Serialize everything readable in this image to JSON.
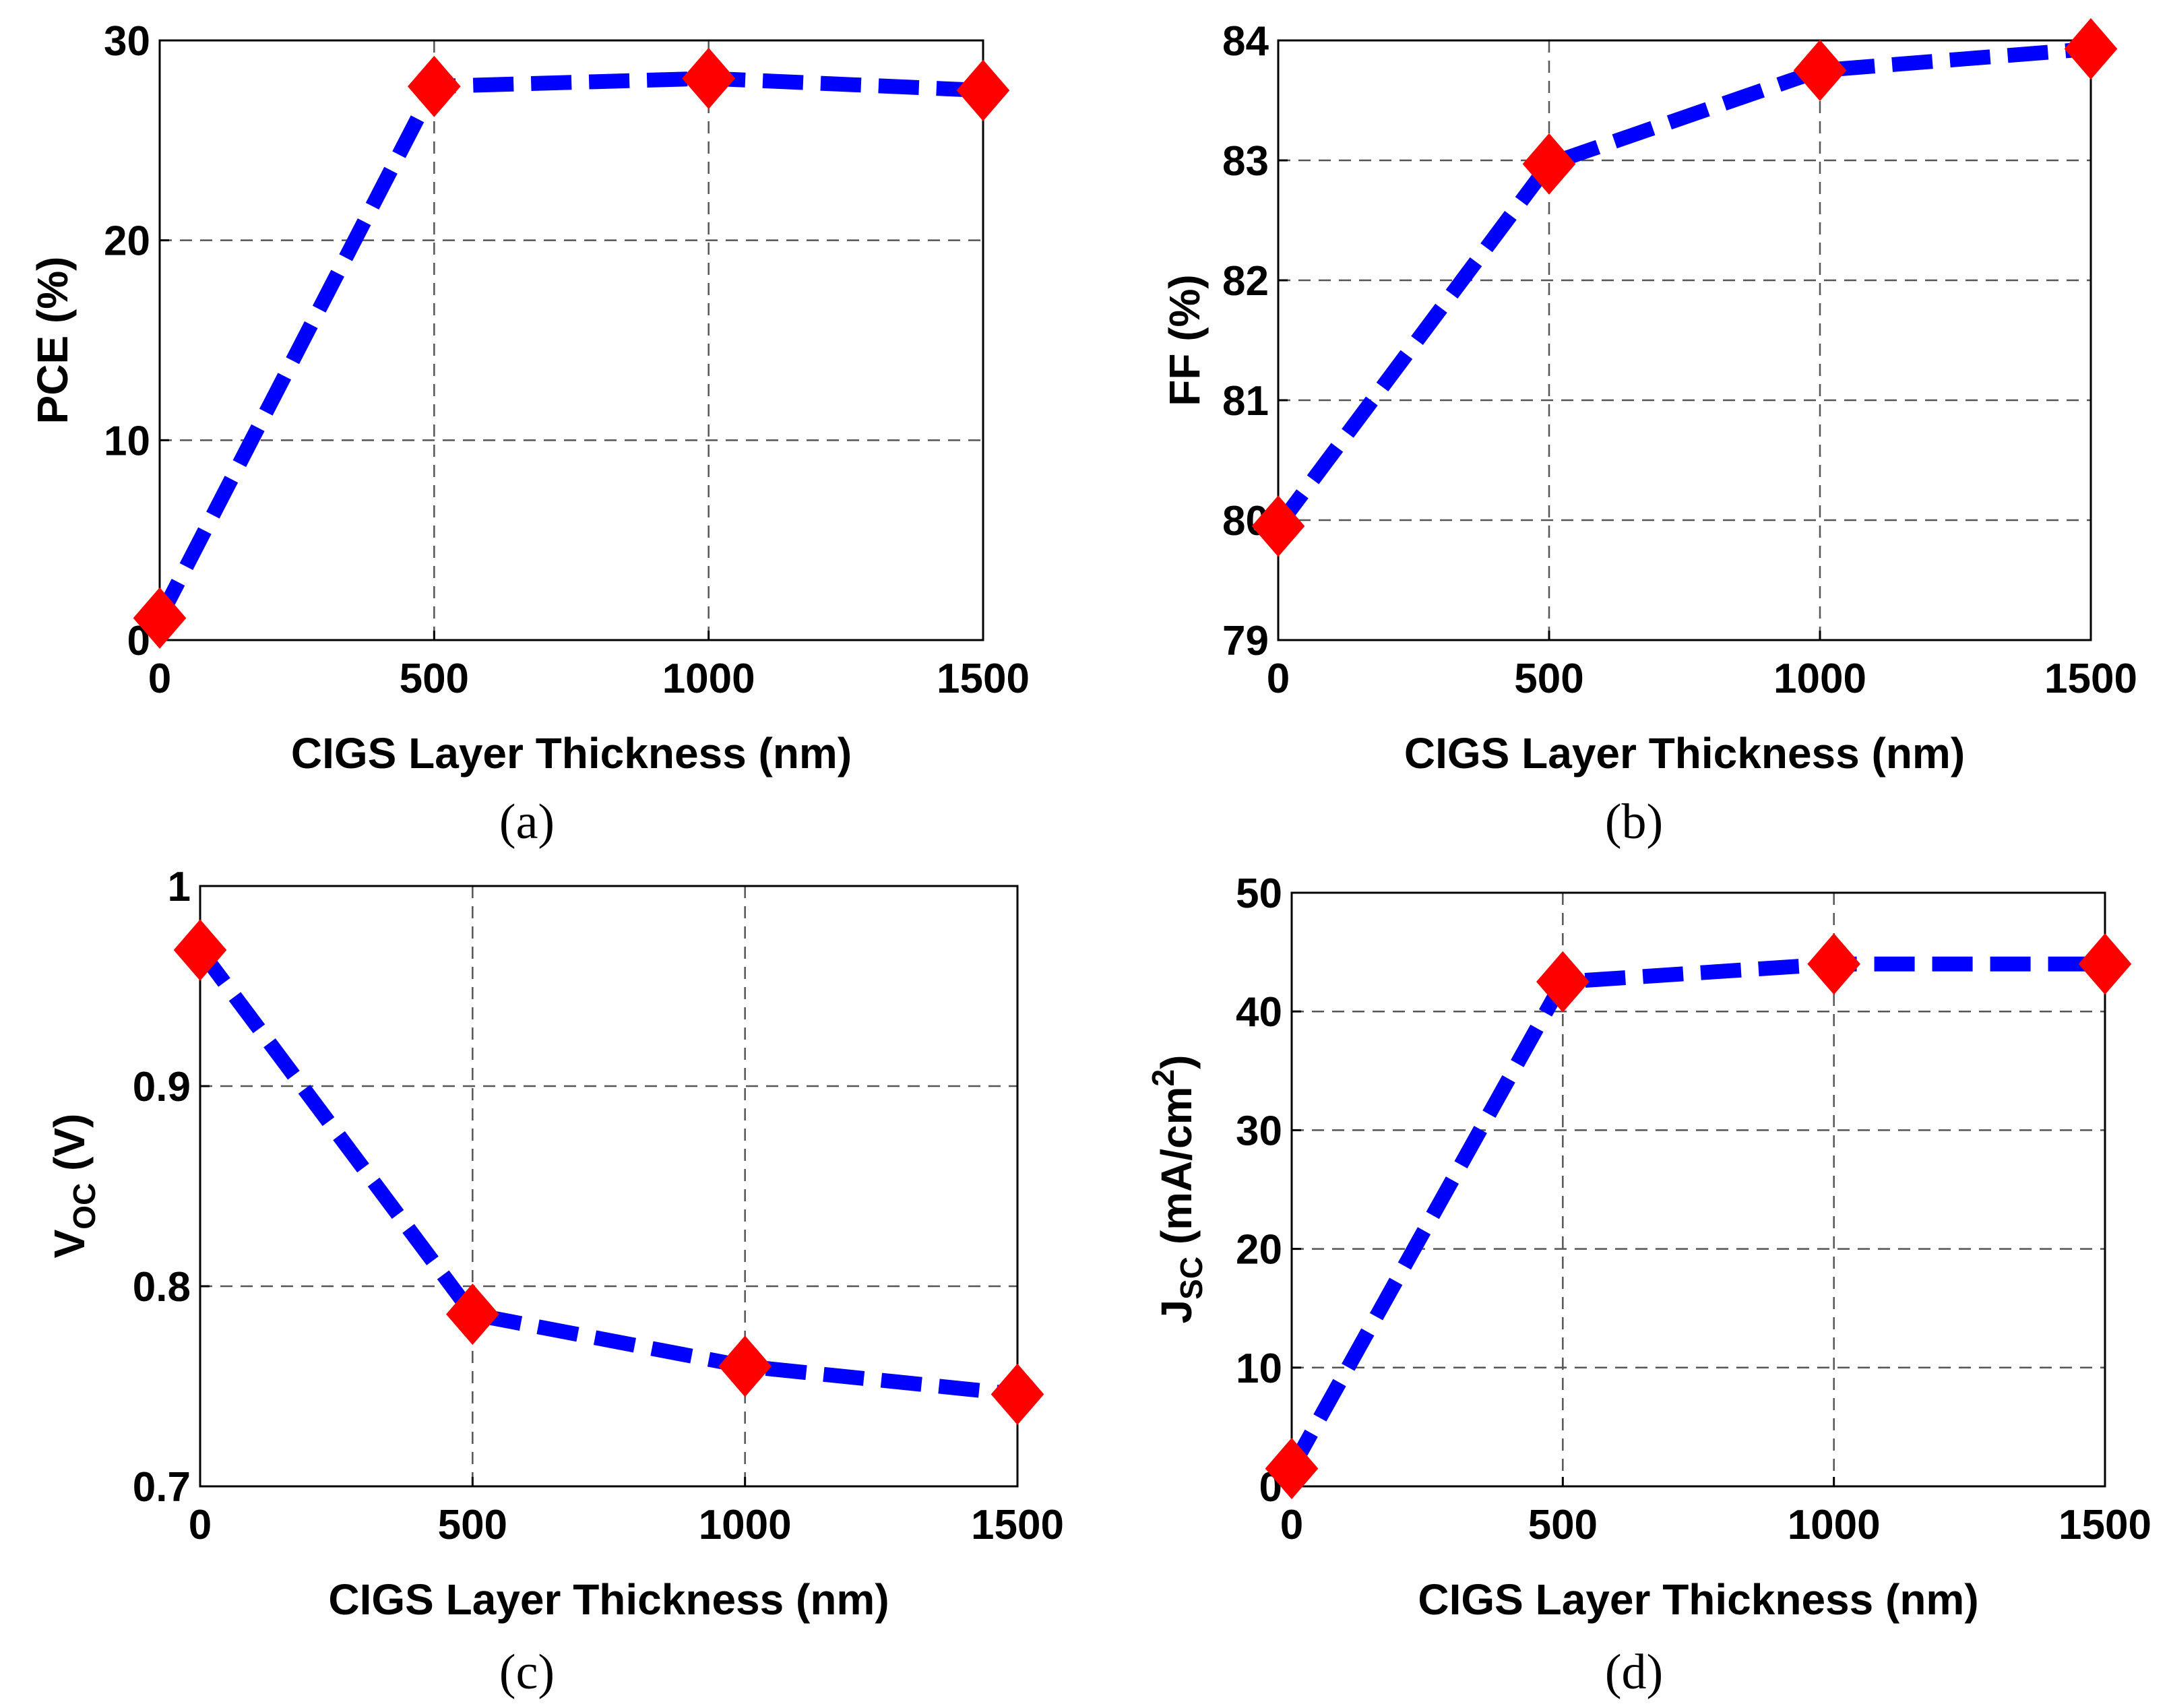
{
  "chart_data": [
    {
      "id": "a",
      "type": "line",
      "caption": "(a)",
      "xlabel": "CIGS Layer Thickness (nm)",
      "ylabel": "PCE (%)",
      "xlim": [
        0,
        1500
      ],
      "ylim": [
        0,
        30
      ],
      "xticks": [
        0,
        500,
        1000,
        1500
      ],
      "yticks": [
        0,
        10,
        20,
        30
      ],
      "grid": true,
      "series": [
        {
          "name": "PCE",
          "x": [
            0,
            500,
            1000,
            1500
          ],
          "y": [
            1.1,
            27.7,
            28.1,
            27.5
          ]
        }
      ]
    },
    {
      "id": "b",
      "type": "line",
      "caption": "(b)",
      "xlabel": "CIGS Layer Thickness (nm)",
      "ylabel": "FF (%)",
      "xlim": [
        0,
        1500
      ],
      "ylim": [
        79,
        84
      ],
      "xticks": [
        0,
        500,
        1000,
        1500
      ],
      "yticks": [
        79,
        80,
        81,
        82,
        83,
        84
      ],
      "grid": true,
      "series": [
        {
          "name": "FF",
          "x": [
            0,
            500,
            1000,
            1500
          ],
          "y": [
            79.95,
            82.97,
            83.75,
            83.93
          ]
        }
      ]
    },
    {
      "id": "c",
      "type": "line",
      "caption": "(c)",
      "xlabel": "CIGS Layer Thickness (nm)",
      "ylabel_main": "V",
      "ylabel_sub": "OC",
      "ylabel_tail": " (V)",
      "xlim": [
        0,
        1500
      ],
      "ylim": [
        0.7,
        1
      ],
      "xticks": [
        0,
        500,
        1000,
        1500
      ],
      "yticks": [
        0.7,
        0.8,
        0.9,
        1
      ],
      "grid": true,
      "series": [
        {
          "name": "VOC",
          "x": [
            0,
            500,
            1000,
            1500
          ],
          "y": [
            0.968,
            0.786,
            0.76,
            0.746
          ]
        }
      ]
    },
    {
      "id": "d",
      "type": "line",
      "caption": "(d)",
      "xlabel": "CIGS Layer Thickness (nm)",
      "ylabel_main": "J",
      "ylabel_sub": "SC",
      "ylabel_mid": " (mA/cm",
      "ylabel_sup": "2",
      "ylabel_tail": ")",
      "xlim": [
        0,
        1500
      ],
      "ylim": [
        0,
        50
      ],
      "xticks": [
        0,
        500,
        1000,
        1500
      ],
      "yticks": [
        0,
        10,
        20,
        30,
        40,
        50
      ],
      "grid": true,
      "series": [
        {
          "name": "JSC",
          "x": [
            0,
            500,
            1000,
            1500
          ],
          "y": [
            1.5,
            42.5,
            44.0,
            44.0
          ]
        }
      ]
    }
  ],
  "colors": {
    "line": "#0000ff",
    "marker": "#ff0000",
    "grid": "#555555"
  }
}
